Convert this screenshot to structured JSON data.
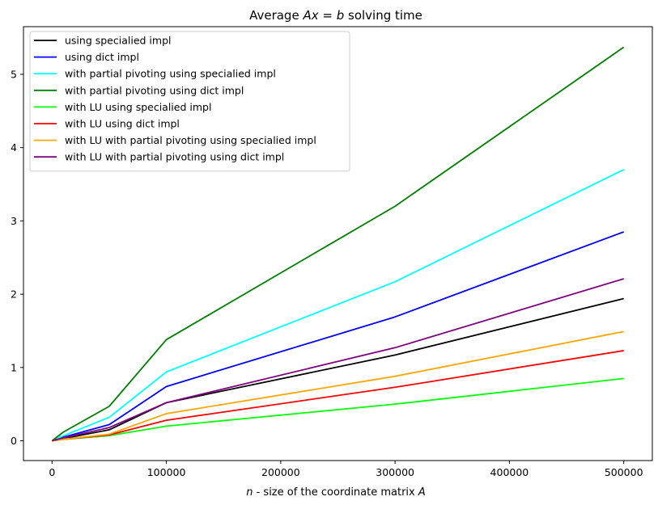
{
  "chart_data": {
    "type": "line",
    "title_parts": {
      "prefix": "Average ",
      "eq_a": "Ax",
      "eq_mid": " = ",
      "eq_b": "b",
      "suffix": " solving time"
    },
    "xlabel_parts": {
      "n": "n",
      "middle": " - size of the coordinate matrix ",
      "A": "A"
    },
    "ylabel": "",
    "x": [
      0,
      10000,
      50000,
      100000,
      300000,
      500000
    ],
    "xlim": [
      -25000,
      525000
    ],
    "ylim": [
      -0.27,
      5.65
    ],
    "xticks": [
      0,
      100000,
      200000,
      300000,
      400000,
      500000
    ],
    "yticks": [
      0,
      1,
      2,
      3,
      4,
      5
    ],
    "grid": false,
    "legend_position": "top-left",
    "series": [
      {
        "name": "using specialied impl",
        "color": "#000000",
        "values": [
          0,
          0.03,
          0.15,
          0.52,
          1.17,
          1.94
        ]
      },
      {
        "name": "using dict impl",
        "color": "#0000ff",
        "values": [
          0,
          0.05,
          0.22,
          0.74,
          1.69,
          2.85
        ]
      },
      {
        "name": "with partial pivoting using specialied impl",
        "color": "#00ffff",
        "values": [
          0,
          0.07,
          0.32,
          0.94,
          2.17,
          3.7
        ]
      },
      {
        "name": "with partial pivoting using dict impl",
        "color": "#008000",
        "values": [
          0,
          0.12,
          0.47,
          1.38,
          3.2,
          5.37
        ]
      },
      {
        "name": "with LU using specialied impl",
        "color": "#00ff00",
        "values": [
          0,
          0.02,
          0.07,
          0.2,
          0.5,
          0.85
        ]
      },
      {
        "name": "with LU using dict impl",
        "color": "#ff0000",
        "values": [
          0,
          0.02,
          0.08,
          0.28,
          0.73,
          1.23
        ]
      },
      {
        "name": "with LU with partial pivoting using specialied impl",
        "color": "#ffa500",
        "values": [
          0,
          0.02,
          0.09,
          0.37,
          0.88,
          1.49
        ]
      },
      {
        "name": "with LU with partial pivoting using dict impl",
        "color": "#800080",
        "values": [
          0,
          0.04,
          0.18,
          0.52,
          1.27,
          2.21
        ]
      }
    ]
  }
}
